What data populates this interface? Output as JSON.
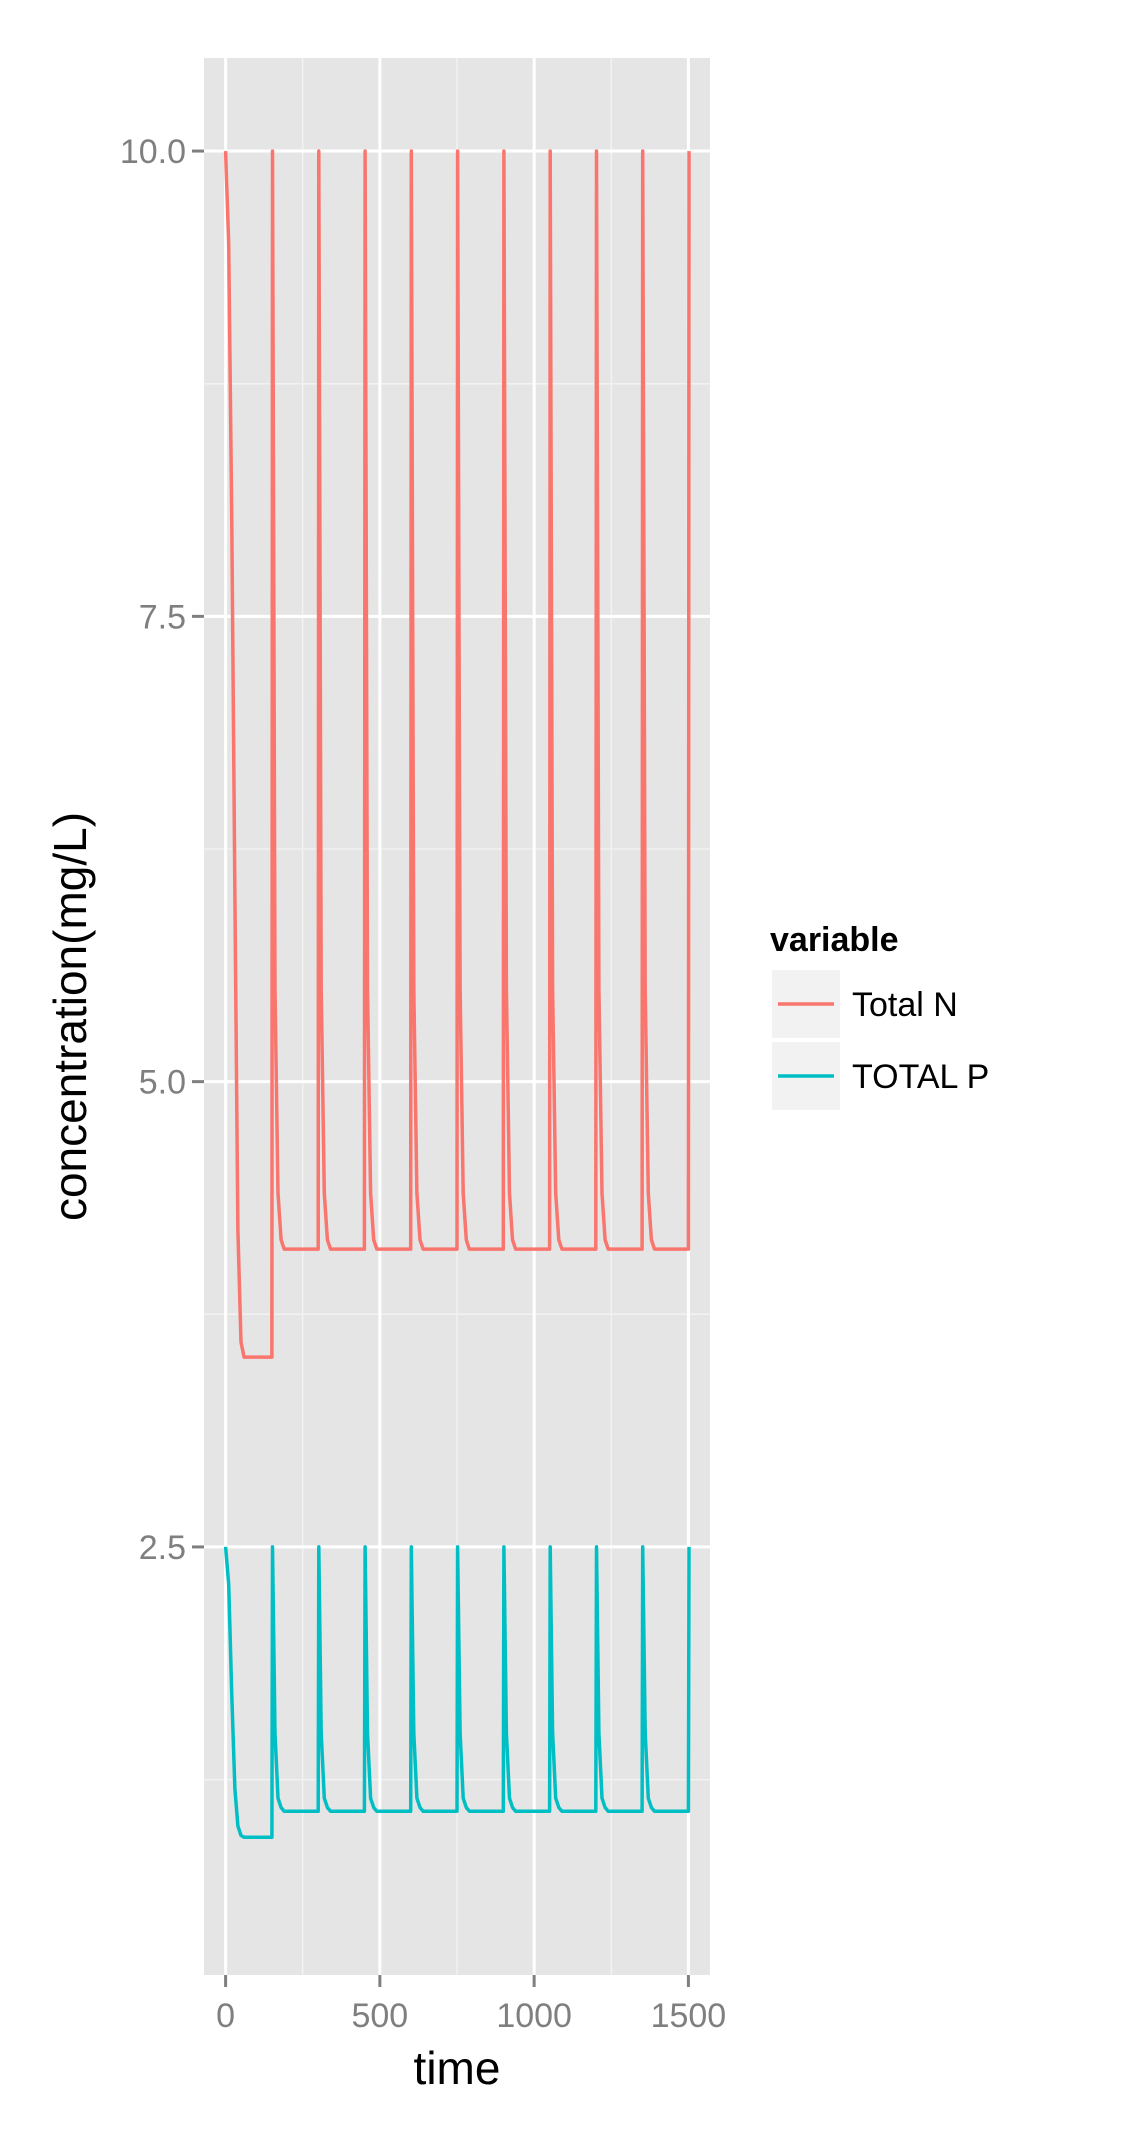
{
  "chart_data": {
    "type": "line",
    "title": "",
    "xlabel": "time",
    "ylabel": "concentration(mg/L)",
    "xlim": [
      -70,
      1570
    ],
    "ylim": [
      0.2,
      10.5
    ],
    "x_ticks": [
      0,
      500,
      1000,
      1500
    ],
    "x_tick_labels": [
      "0",
      "500",
      "1000",
      "1500"
    ],
    "y_ticks": [
      2.5,
      5.0,
      7.5,
      10.0
    ],
    "y_tick_labels": [
      "2.5",
      "5.0",
      "7.5",
      "10.0"
    ],
    "grid": true,
    "legend": {
      "title": "variable",
      "position": "right"
    },
    "background": "#e5e5e5",
    "series": [
      {
        "name": "Total N",
        "color": "#f8766d",
        "values": [
          [
            0,
            10.0
          ],
          [
            10,
            9.5
          ],
          [
            20,
            8.0
          ],
          [
            30,
            6.0
          ],
          [
            40,
            4.2
          ],
          [
            50,
            3.6
          ],
          [
            60,
            3.52
          ],
          [
            150,
            3.52
          ],
          [
            152,
            10.0
          ],
          [
            160,
            5.5
          ],
          [
            170,
            4.4
          ],
          [
            180,
            4.15
          ],
          [
            190,
            4.1
          ],
          [
            300,
            4.1
          ],
          [
            302,
            10.0
          ],
          [
            310,
            5.5
          ],
          [
            320,
            4.4
          ],
          [
            330,
            4.15
          ],
          [
            340,
            4.1
          ],
          [
            450,
            4.1
          ],
          [
            452,
            10.0
          ],
          [
            460,
            5.5
          ],
          [
            470,
            4.4
          ],
          [
            480,
            4.15
          ],
          [
            490,
            4.1
          ],
          [
            600,
            4.1
          ],
          [
            602,
            10.0
          ],
          [
            610,
            5.5
          ],
          [
            620,
            4.4
          ],
          [
            630,
            4.15
          ],
          [
            640,
            4.1
          ],
          [
            750,
            4.1
          ],
          [
            752,
            10.0
          ],
          [
            760,
            5.5
          ],
          [
            770,
            4.4
          ],
          [
            780,
            4.15
          ],
          [
            790,
            4.1
          ],
          [
            900,
            4.1
          ],
          [
            902,
            10.0
          ],
          [
            910,
            5.5
          ],
          [
            920,
            4.4
          ],
          [
            930,
            4.15
          ],
          [
            940,
            4.1
          ],
          [
            1050,
            4.1
          ],
          [
            1052,
            10.0
          ],
          [
            1060,
            5.5
          ],
          [
            1070,
            4.4
          ],
          [
            1080,
            4.15
          ],
          [
            1090,
            4.1
          ],
          [
            1200,
            4.1
          ],
          [
            1202,
            10.0
          ],
          [
            1210,
            5.5
          ],
          [
            1220,
            4.4
          ],
          [
            1230,
            4.15
          ],
          [
            1240,
            4.1
          ],
          [
            1350,
            4.1
          ],
          [
            1352,
            10.0
          ],
          [
            1360,
            5.5
          ],
          [
            1370,
            4.4
          ],
          [
            1380,
            4.15
          ],
          [
            1390,
            4.1
          ],
          [
            1500,
            4.1
          ],
          [
            1502,
            10.0
          ]
        ]
      },
      {
        "name": "TOTAL P",
        "color": "#00bfc4",
        "values": [
          [
            0,
            2.5
          ],
          [
            10,
            2.3
          ],
          [
            20,
            1.7
          ],
          [
            30,
            1.2
          ],
          [
            40,
            1.0
          ],
          [
            50,
            0.95
          ],
          [
            60,
            0.94
          ],
          [
            150,
            0.94
          ],
          [
            152,
            2.5
          ],
          [
            160,
            1.5
          ],
          [
            170,
            1.15
          ],
          [
            180,
            1.1
          ],
          [
            190,
            1.08
          ],
          [
            300,
            1.08
          ],
          [
            302,
            2.5
          ],
          [
            310,
            1.5
          ],
          [
            320,
            1.15
          ],
          [
            330,
            1.1
          ],
          [
            340,
            1.08
          ],
          [
            450,
            1.08
          ],
          [
            452,
            2.5
          ],
          [
            460,
            1.5
          ],
          [
            470,
            1.15
          ],
          [
            480,
            1.1
          ],
          [
            490,
            1.08
          ],
          [
            600,
            1.08
          ],
          [
            602,
            2.5
          ],
          [
            610,
            1.5
          ],
          [
            620,
            1.15
          ],
          [
            630,
            1.1
          ],
          [
            640,
            1.08
          ],
          [
            750,
            1.08
          ],
          [
            752,
            2.5
          ],
          [
            760,
            1.5
          ],
          [
            770,
            1.15
          ],
          [
            780,
            1.1
          ],
          [
            790,
            1.08
          ],
          [
            900,
            1.08
          ],
          [
            902,
            2.5
          ],
          [
            910,
            1.5
          ],
          [
            920,
            1.15
          ],
          [
            930,
            1.1
          ],
          [
            940,
            1.08
          ],
          [
            1050,
            1.08
          ],
          [
            1052,
            2.5
          ],
          [
            1060,
            1.5
          ],
          [
            1070,
            1.15
          ],
          [
            1080,
            1.1
          ],
          [
            1090,
            1.08
          ],
          [
            1200,
            1.08
          ],
          [
            1202,
            2.5
          ],
          [
            1210,
            1.5
          ],
          [
            1220,
            1.15
          ],
          [
            1230,
            1.1
          ],
          [
            1240,
            1.08
          ],
          [
            1350,
            1.08
          ],
          [
            1352,
            2.5
          ],
          [
            1360,
            1.5
          ],
          [
            1370,
            1.15
          ],
          [
            1380,
            1.1
          ],
          [
            1390,
            1.08
          ],
          [
            1500,
            1.08
          ],
          [
            1502,
            2.5
          ]
        ]
      }
    ]
  }
}
